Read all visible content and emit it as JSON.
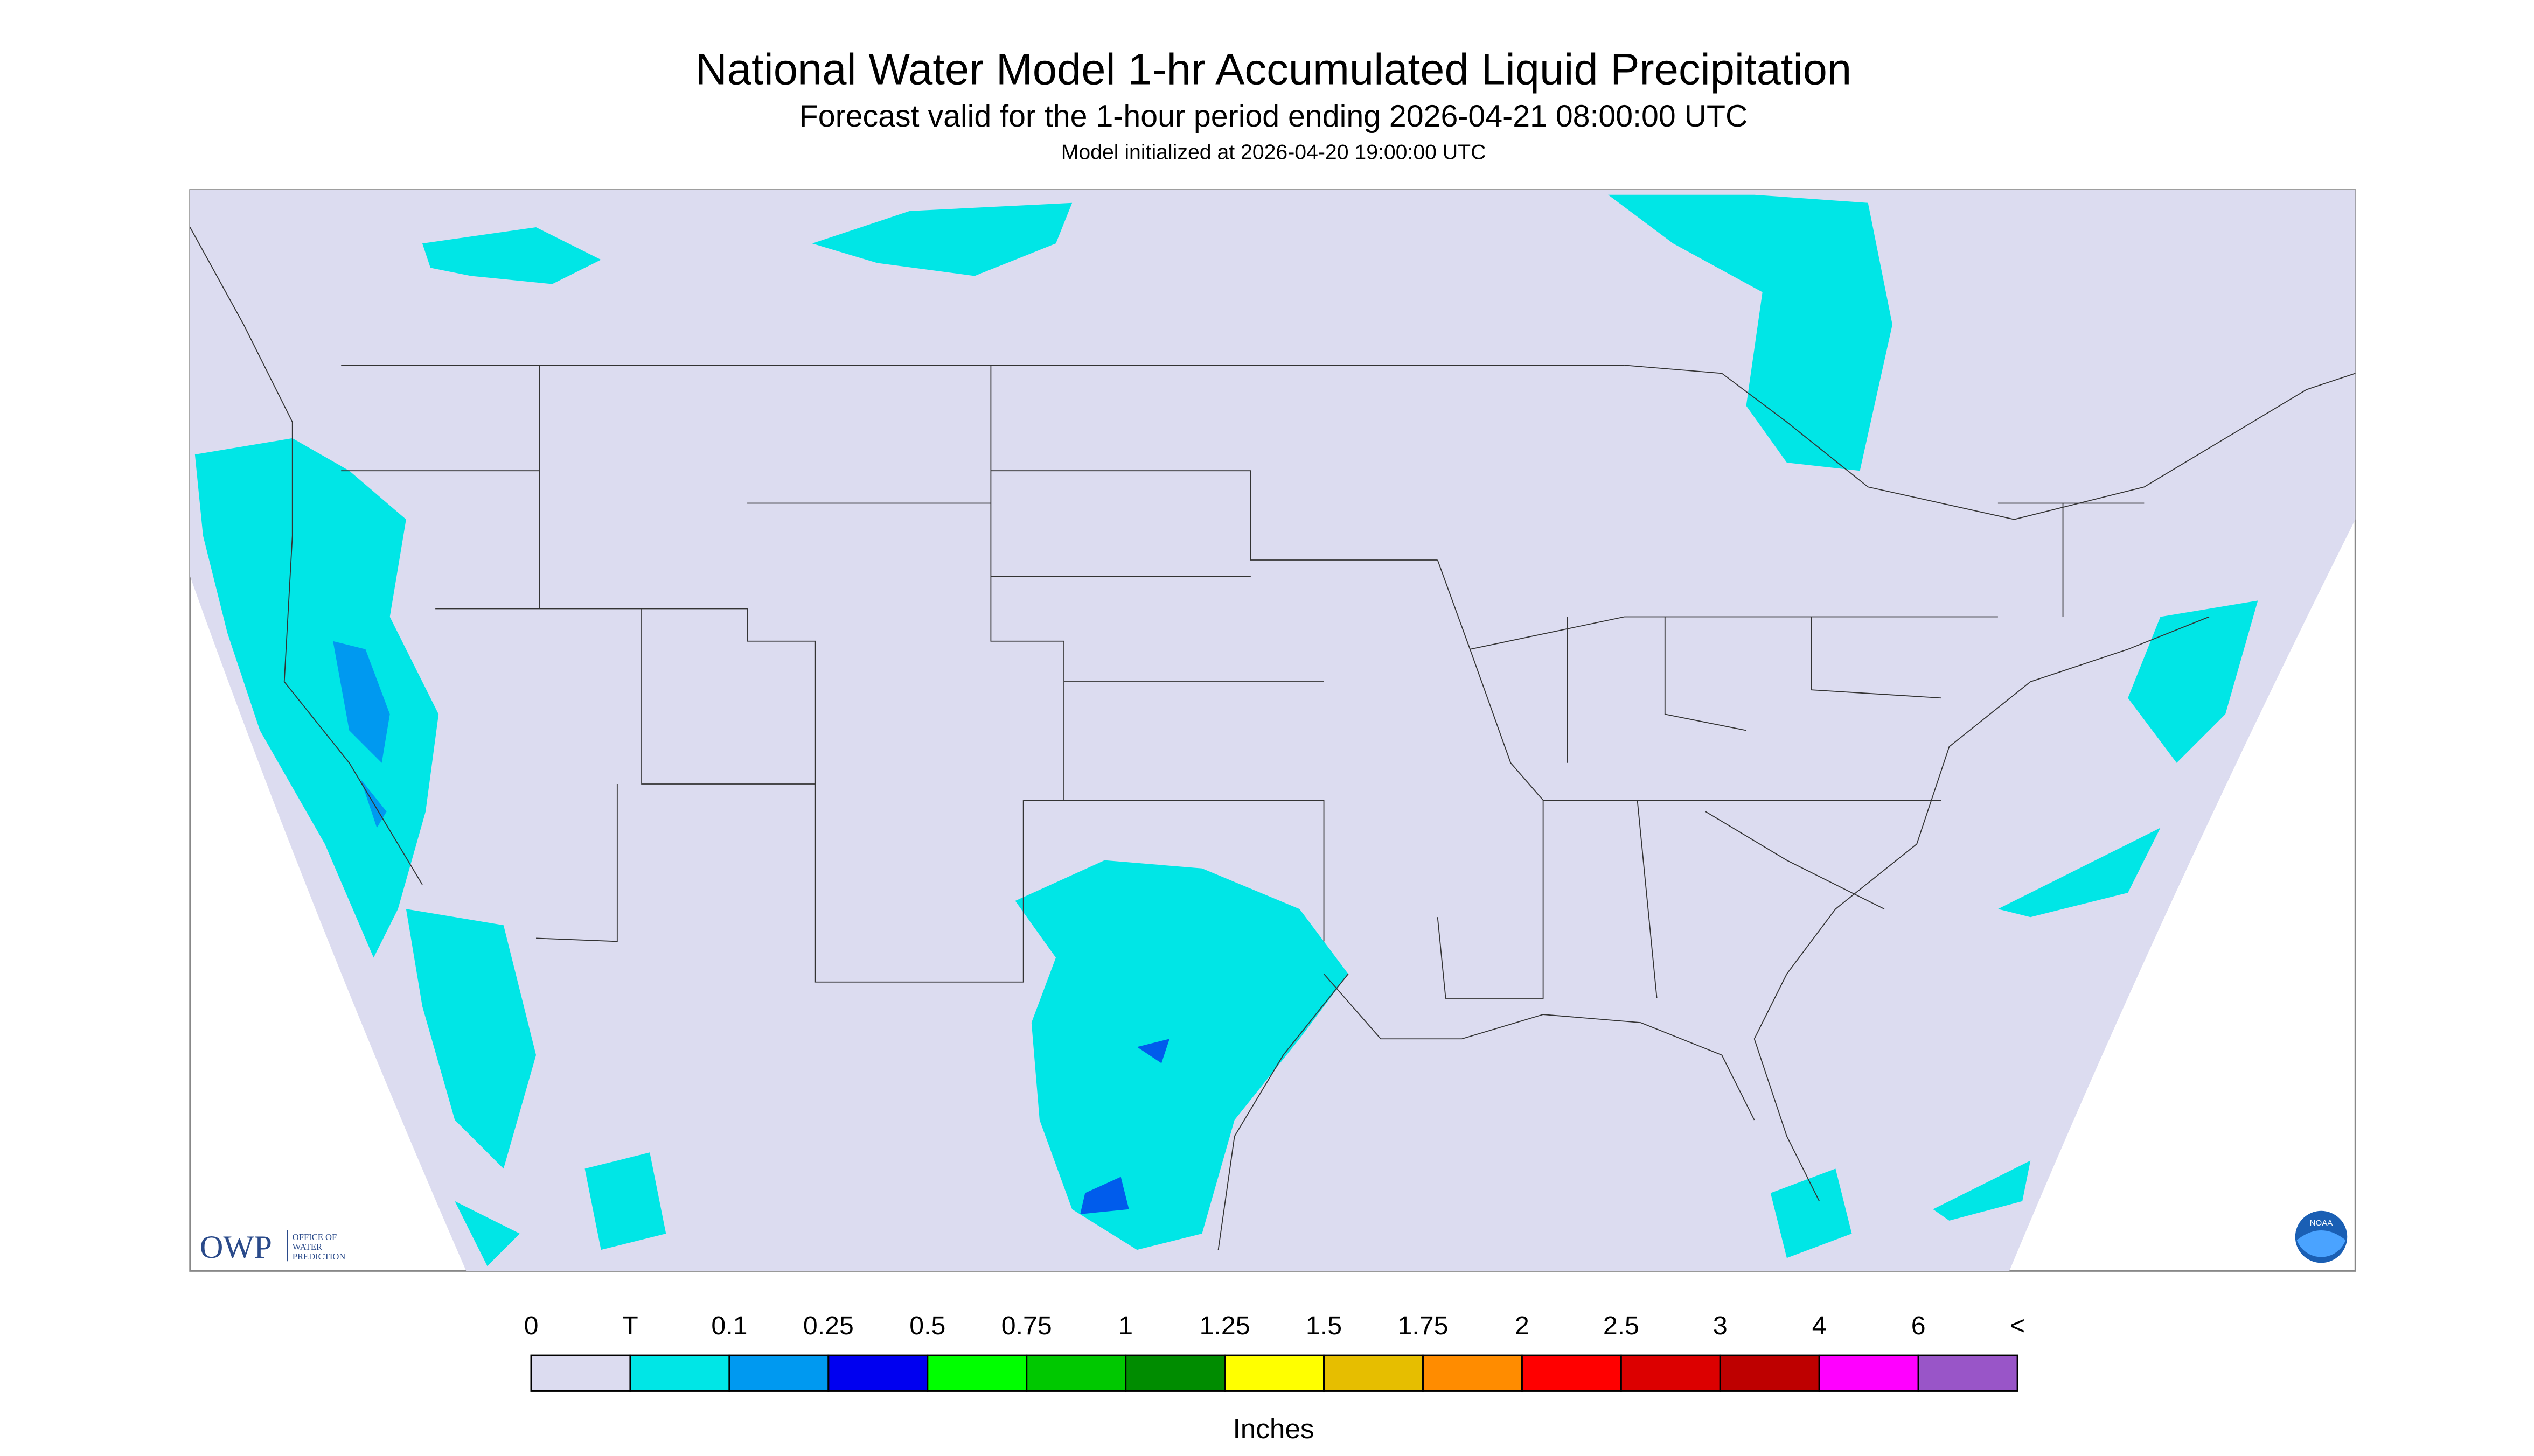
{
  "header": {
    "title": "National Water Model 1-hr Accumulated Liquid Precipitation",
    "subtitle": "Forecast valid for the 1-hour period ending 2026-04-21 08:00:00 UTC",
    "initialized": "Model initialized at 2026-04-20 19:00:00 UTC"
  },
  "legend": {
    "labels": [
      "0",
      "T",
      "0.1",
      "0.25",
      "0.5",
      "0.75",
      "1",
      "1.25",
      "1.5",
      "1.75",
      "2",
      "2.5",
      "3",
      "4",
      "6",
      "<"
    ],
    "colors": [
      "#dcdcf0",
      "#00e6e6",
      "#0099f0",
      "#0000f0",
      "#00ff00",
      "#00c800",
      "#008c00",
      "#ffff00",
      "#e6be00",
      "#ff8c00",
      "#ff0000",
      "#dc0000",
      "#be0000",
      "#ff00ff",
      "#9955c8"
    ],
    "units": "Inches"
  },
  "logos": {
    "owp": "OWP",
    "owp_text": [
      "OFFICE OF",
      "WATER",
      "PREDICTION"
    ],
    "noaa": "NOAA"
  }
}
